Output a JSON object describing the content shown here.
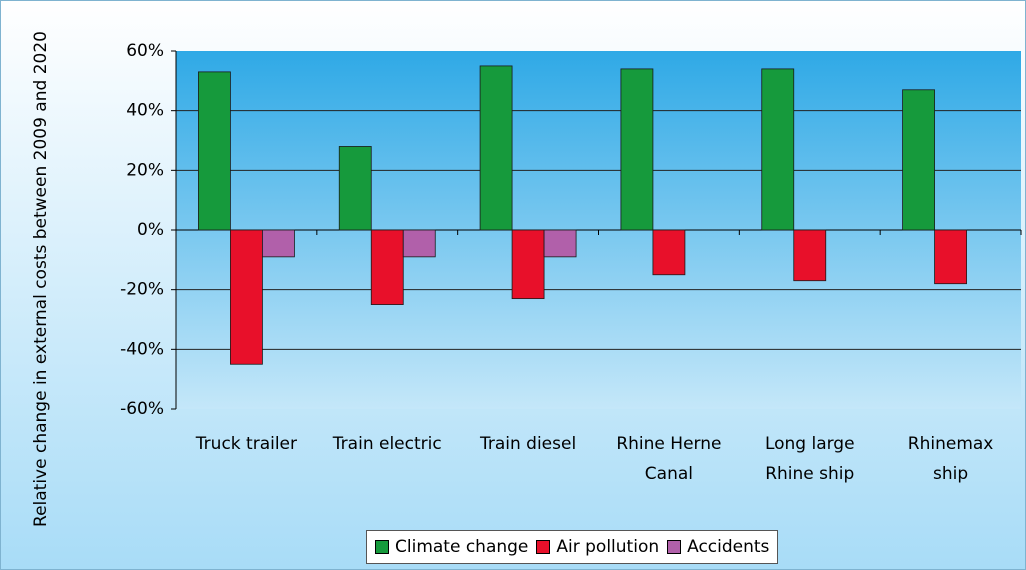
{
  "chart_data": {
    "type": "bar",
    "y_label": "Relative change in external costs between 2009 and 2020",
    "categories": [
      "Truck trailer",
      "Train electric",
      "Train diesel",
      "Rhine Herne Canal",
      "Long large Rhine ship",
      "Rhinemax ship"
    ],
    "series": [
      {
        "name": "Climate change",
        "color": "#169a3c",
        "values": [
          53,
          28,
          55,
          54,
          54,
          47
        ]
      },
      {
        "name": "Air pollution",
        "color": "#e8102a",
        "values": [
          -45,
          -25,
          -23,
          -15,
          -17,
          -18
        ]
      },
      {
        "name": "Accidents",
        "color": "#b160aa",
        "values": [
          -9,
          -9,
          -9,
          null,
          null,
          null
        ]
      }
    ],
    "ylim": [
      -60,
      60
    ],
    "yticks": [
      {
        "value": -60,
        "label": "-60%"
      },
      {
        "value": -40,
        "label": "-40%"
      },
      {
        "value": -20,
        "label": "-20%"
      },
      {
        "value": 0,
        "label": "0%"
      },
      {
        "value": 20,
        "label": "20%"
      },
      {
        "value": 40,
        "label": "40%"
      },
      {
        "value": 60,
        "label": "60%"
      }
    ],
    "grid": true
  }
}
